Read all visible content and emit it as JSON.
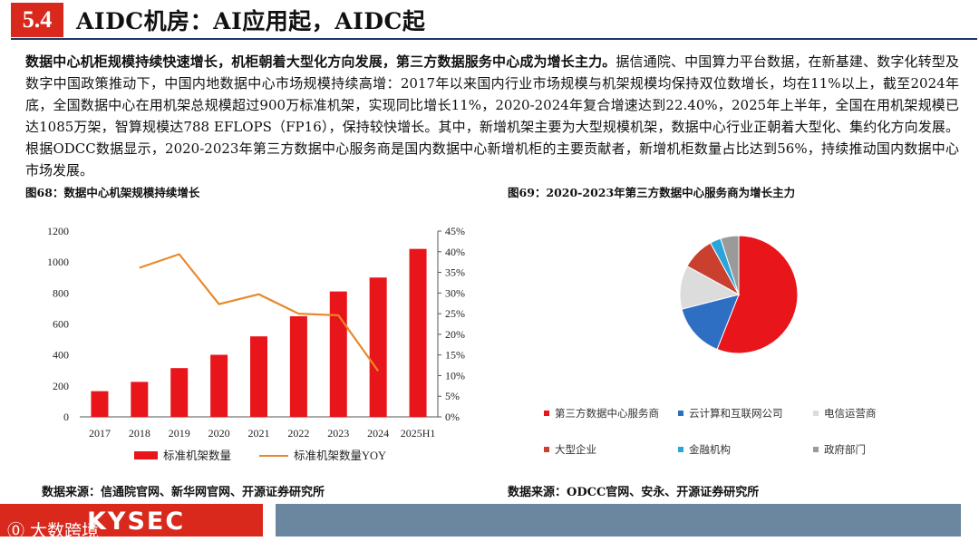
{
  "header": {
    "section_number": "5.4",
    "title": "AIDC机房：AI应用起，AIDC起"
  },
  "body": {
    "lead": "数据中心机柜规模持续快速增长，机柜朝着大型化方向发展，第三方数据服务中心成为增长主力。",
    "text": "据信通院、中国算力平台数据，在新基建、数字化转型及数字中国政策推动下，中国内地数据中心市场规模持续高增：2017年以来国内行业市场规模与机架规模均保持双位数增长，均在11%以上，截至2024年底，全国数据中心在用机架总规模超过900万标准机架，实现同比增长11%，2020-2024年复合增速达到22.40%，2025年上半年，全国在用机架规模已达1085万架，智算规模达788 EFLOPS（FP16），保持较快增长。其中，新增机架主要为大型规模机架，数据中心行业正朝着大型化、集约化方向发展。根据ODCC数据显示，2020-2023年第三方数据中心服务商是国内数据中心新增机柜的主要贡献者，新增机柜数量占比达到56%，持续推动国内数据中心市场发展。"
  },
  "figures": {
    "fig68_title": "图68：数据中心机架规模持续增长",
    "fig69_title": "图69：2020-2023年第三方数据中心服务商为增长主力",
    "src68": "数据来源：信通院官网、新华网官网、开源证券研究所",
    "src69": "数据来源：ODCC官网、安永、开源证券研究所"
  },
  "footer": {
    "logo": "KYSEC",
    "watermark": "大数跨境"
  },
  "colors": {
    "accent_red": "#d9291c",
    "bar_red": "#e8151b",
    "line_orange": "#e8892c",
    "navy": "#1a3a6b",
    "footer_blue": "#6a879f"
  },
  "chart_data": [
    {
      "type": "bar",
      "categories": [
        "2017",
        "2018",
        "2019",
        "2020",
        "2021",
        "2022",
        "2023",
        "2024",
        "2025H1"
      ],
      "series": [
        {
          "name": "标准机架数量",
          "type": "bar",
          "axis": "left",
          "values": [
            166,
            226,
            315,
            401,
            520,
            650,
            810,
            900,
            1085
          ]
        },
        {
          "name": "标准机架数量YOY",
          "type": "line",
          "axis": "right",
          "values": [
            null,
            36.1,
            39.4,
            27.3,
            29.7,
            25.0,
            24.6,
            11.1,
            null
          ]
        }
      ],
      "ylim": [
        0,
        1200
      ],
      "yticks": [
        "0",
        "200",
        "400",
        "600",
        "800",
        "1000",
        "1200"
      ],
      "y2lim": [
        0,
        45
      ],
      "y2ticks": [
        "0%",
        "5%",
        "10%",
        "15%",
        "20%",
        "25%",
        "30%",
        "35%",
        "40%",
        "45%"
      ],
      "legend": "bottom"
    },
    {
      "type": "pie",
      "labels": [
        "第三方数据中心服务商",
        "云计算和互联网公司",
        "电信运营商",
        "大型企业",
        "金融机构",
        "政府部门"
      ],
      "values": [
        56,
        15,
        12,
        9,
        3,
        5
      ],
      "colors": [
        "#e8151b",
        "#2e6fc4",
        "#dcdcdc",
        "#c9402f",
        "#2aa5dc",
        "#9a9a9a"
      ],
      "legend": "bottom"
    }
  ]
}
